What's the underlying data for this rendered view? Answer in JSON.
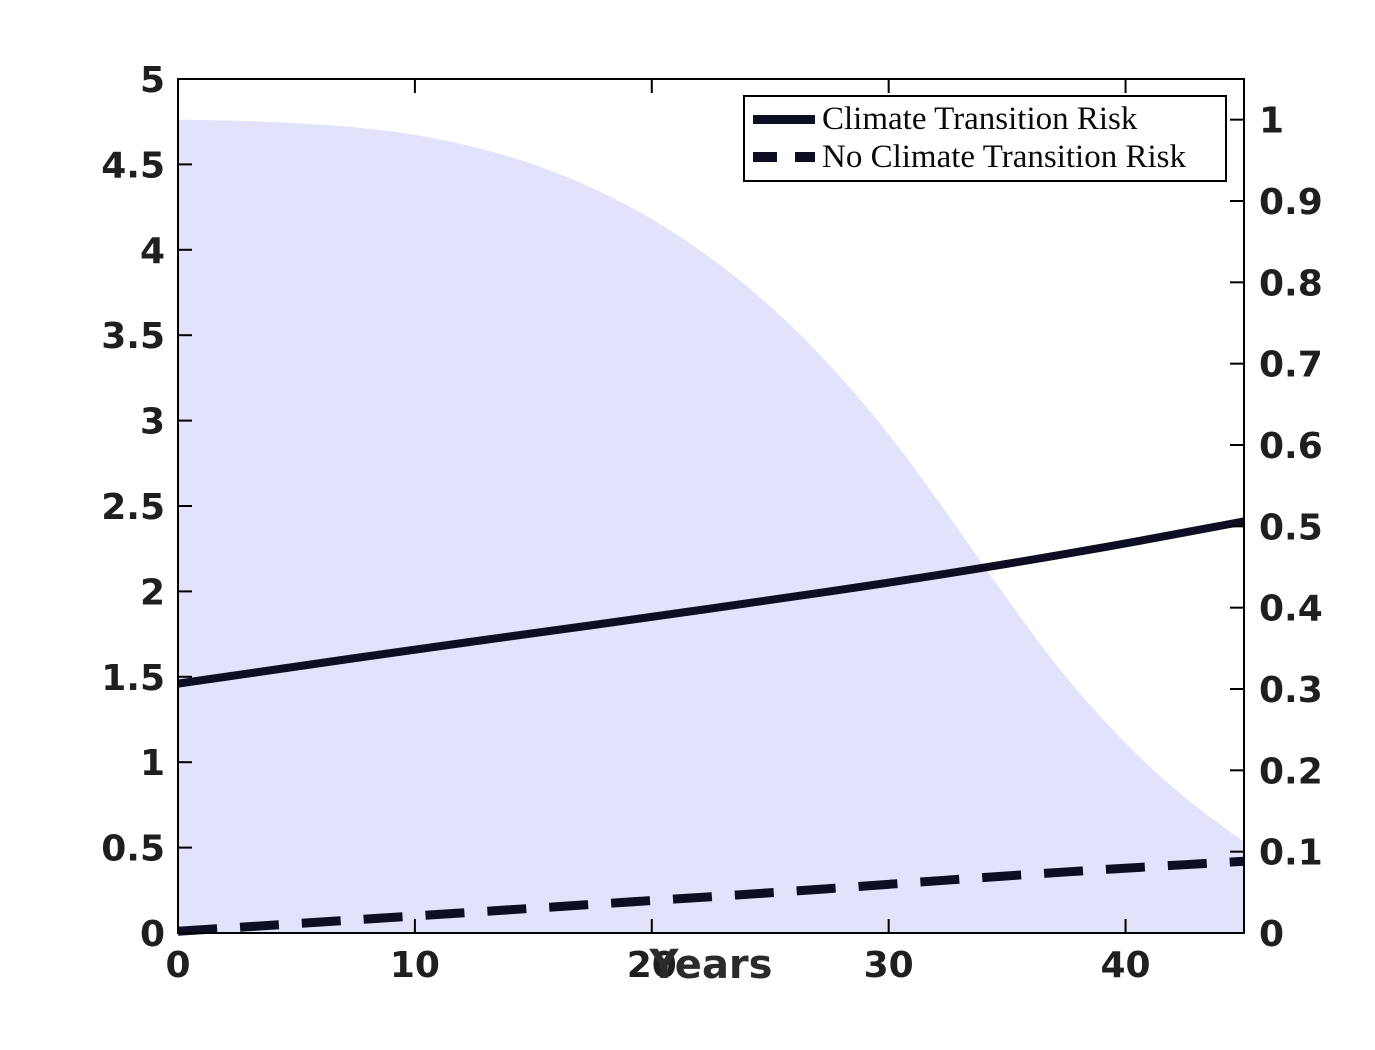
{
  "figure": {
    "background": "#ffffff"
  },
  "chart_data": {
    "type": "area",
    "title": "",
    "xlabel": "Years",
    "xlim": [
      0,
      45
    ],
    "grid": false,
    "x_axis": {
      "values": [
        0,
        10,
        20,
        30,
        40
      ],
      "labels": [
        "0",
        "10",
        "20",
        "30",
        "40"
      ]
    },
    "left_axis": {
      "ylim": [
        0,
        5
      ],
      "values": [
        0,
        0.5,
        1,
        1.5,
        2,
        2.5,
        3,
        3.5,
        4,
        4.5,
        5
      ],
      "labels": [
        "0",
        "0.5",
        "1",
        "1.5",
        "2",
        "2.5",
        "3",
        "3.5",
        "4",
        "4.5",
        "5"
      ]
    },
    "right_axis": {
      "ylim": [
        0,
        1.05
      ],
      "values": [
        0,
        0.1,
        0.2,
        0.3,
        0.4,
        0.5,
        0.6,
        0.7,
        0.8,
        0.9,
        1.0
      ],
      "labels": [
        "0",
        "0.1",
        "0.2",
        "0.3",
        "0.4",
        "0.5",
        "0.6",
        "0.7",
        "0.8",
        "0.9",
        "1"
      ]
    },
    "area": {
      "name": "shaded-probability-region",
      "axis": "right",
      "color": "#e2e2fa",
      "x": [
        0,
        2.5,
        5,
        7.5,
        10,
        12.5,
        15,
        17.5,
        20,
        22.5,
        25,
        27.5,
        30,
        32.5,
        35,
        37.5,
        40,
        42.5,
        45
      ],
      "y": [
        1.0,
        0.999,
        0.996,
        0.991,
        0.982,
        0.967,
        0.946,
        0.917,
        0.879,
        0.831,
        0.772,
        0.7,
        0.615,
        0.515,
        0.41,
        0.312,
        0.232,
        0.165,
        0.112
      ]
    },
    "series": [
      {
        "name": "Climate Transition Risk",
        "style": "solid",
        "axis": "left",
        "color": "#0d0d24",
        "width": 8,
        "x": [
          0,
          5,
          10,
          15,
          20,
          25,
          30,
          35,
          40,
          45
        ],
        "y": [
          1.46,
          1.56,
          1.66,
          1.755,
          1.85,
          1.95,
          2.05,
          2.16,
          2.28,
          2.41
        ]
      },
      {
        "name": "No Climate Transition Risk",
        "style": "dashed",
        "axis": "left",
        "color": "#0d0d24",
        "width": 9,
        "dash": [
          39,
          23
        ],
        "x": [
          0,
          5,
          10,
          15,
          20,
          25,
          30,
          35,
          40,
          45
        ],
        "y": [
          0.01,
          0.055,
          0.1,
          0.145,
          0.19,
          0.235,
          0.285,
          0.335,
          0.38,
          0.42
        ]
      }
    ],
    "legend": {
      "position": "northeast",
      "entries": [
        {
          "label": "Climate Transition Risk",
          "style": "solid"
        },
        {
          "label": "No Climate Transition Risk",
          "style": "dashed"
        }
      ]
    },
    "tick_label_color": "#1f1f1f",
    "axis_color": "#000000"
  }
}
